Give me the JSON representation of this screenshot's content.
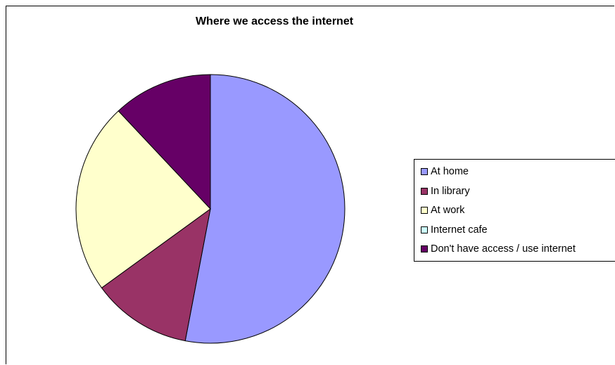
{
  "chart_data": {
    "type": "pie",
    "title": "Where we access the internet",
    "slices": [
      {
        "label": "At home",
        "value": 53,
        "color": "#9999ff"
      },
      {
        "label": "In library",
        "value": 12,
        "color": "#993366"
      },
      {
        "label": "At work",
        "value": 23,
        "color": "#ffffcc"
      },
      {
        "label": "Internet cafe",
        "value": 0,
        "color": "#ccffff"
      },
      {
        "label": "Don't have access / use internet",
        "value": 12,
        "color": "#660066"
      }
    ],
    "legend_position": "right"
  }
}
